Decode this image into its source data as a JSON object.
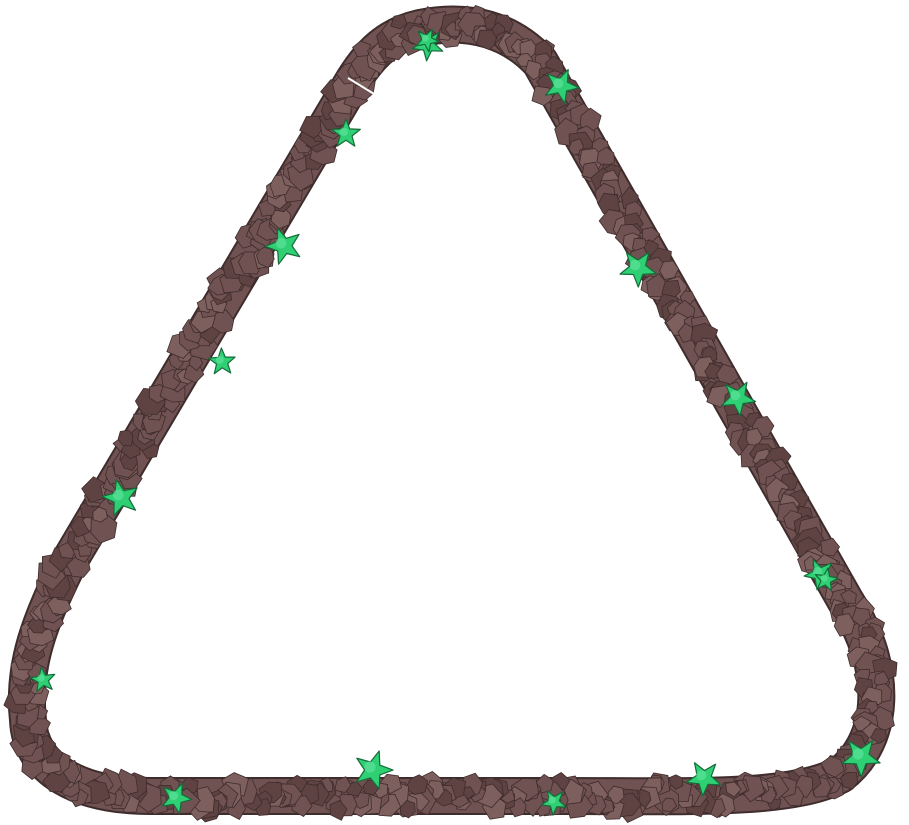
{
  "colors": {
    "background": "#ffffff",
    "rock_dark": "#5e4342",
    "rock_mid": "#6f5251",
    "rock_light": "#7d5f5e",
    "rock_outline": "#3f2c2c",
    "leaf_fill": "#2fcf74",
    "leaf_highlight": "#5be39a",
    "leaf_outline": "#146b3a",
    "crack": "#ffffff"
  },
  "track": {
    "shape": "rounded-triangle",
    "icon": "rock-track"
  },
  "plants": {
    "icon": "leaf-sprout",
    "count": 17
  }
}
